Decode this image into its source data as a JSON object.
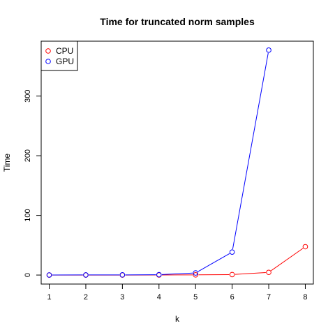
{
  "chart_data": {
    "type": "line",
    "title": "Time for truncated norm samples",
    "xlabel": "k",
    "ylabel": "Time",
    "x": [
      1,
      2,
      3,
      4,
      5,
      6,
      7,
      8
    ],
    "xticks": [
      1,
      2,
      3,
      4,
      5,
      6,
      7,
      8
    ],
    "yticks": [
      0,
      100,
      200,
      300
    ],
    "xlim": [
      0.78,
      8.22
    ],
    "ylim": [
      -15.1,
      392
    ],
    "grid": false,
    "legend_position": "top-left",
    "series": [
      {
        "name": "CPU",
        "color": "#ff0000",
        "values": [
          0.0,
          0.0,
          0.0,
          0.1,
          0.3,
          0.8,
          4.5,
          47.5
        ]
      },
      {
        "name": "GPU",
        "color": "#0000ff",
        "values": [
          0.1,
          0.2,
          0.3,
          0.6,
          3.5,
          38.5,
          null,
          null
        ]
      }
    ],
    "gpu_point_7": 377
  }
}
